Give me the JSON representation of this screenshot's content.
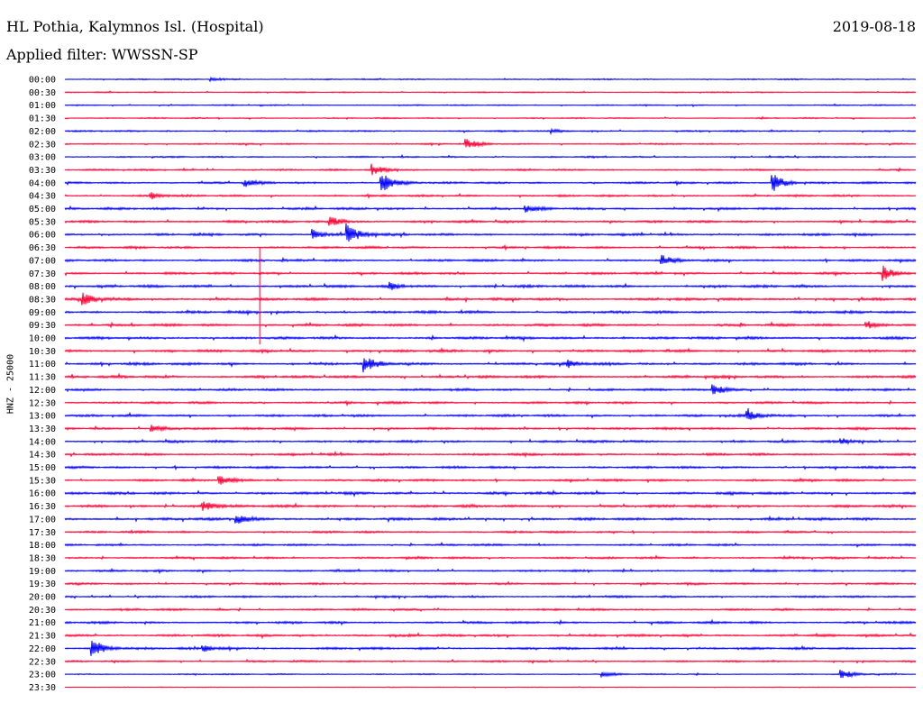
{
  "header": {
    "station": "HL Pothia, Kalymnos Isl. (Hospital)",
    "date": "2019-08-18",
    "filter": "Applied filter: WWSSN-SP"
  },
  "chart_data": {
    "type": "line",
    "title": "HL Pothia, Kalymnos Isl. (Hospital)",
    "subtitle": "Applied filter: WWSSN-SP",
    "ylabel": "HNZ - 25000",
    "xlabel": "",
    "grid": false,
    "legend": "none",
    "series_colors": [
      "#0000ff",
      "#ff0033"
    ],
    "categories": [
      "00:00",
      "00:30",
      "01:00",
      "01:30",
      "02:00",
      "02:30",
      "03:00",
      "03:30",
      "04:00",
      "04:30",
      "05:00",
      "05:30",
      "06:00",
      "06:30",
      "07:00",
      "07:30",
      "08:00",
      "08:30",
      "09:00",
      "09:30",
      "10:00",
      "10:30",
      "11:00",
      "11:30",
      "12:00",
      "12:30",
      "13:00",
      "13:30",
      "14:00",
      "14:30",
      "15:00",
      "15:30",
      "16:00",
      "16:30",
      "17:00",
      "17:30",
      "18:00",
      "18:30",
      "19:00",
      "19:30",
      "20:00",
      "20:30",
      "21:00",
      "21:30",
      "22:00",
      "22:30",
      "23:00",
      "23:30"
    ],
    "noise_level": [
      0.5,
      0.5,
      0.5,
      0.5,
      0.6,
      0.6,
      0.6,
      0.7,
      0.8,
      0.8,
      0.9,
      0.9,
      0.9,
      0.9,
      0.9,
      0.9,
      1.0,
      1.0,
      1.0,
      1.0,
      1.0,
      1.0,
      1.0,
      1.0,
      0.9,
      0.9,
      0.9,
      0.9,
      0.9,
      0.9,
      0.9,
      0.9,
      1.0,
      1.0,
      1.0,
      0.8,
      0.8,
      0.8,
      0.8,
      0.8,
      0.8,
      0.8,
      0.9,
      0.9,
      0.9,
      0.7,
      0.5,
      0.3
    ],
    "events": [
      {
        "trace": "00:00",
        "t": 0.17,
        "amp": 2
      },
      {
        "trace": "02:00",
        "t": 0.57,
        "amp": 2
      },
      {
        "trace": "02:30",
        "t": 0.47,
        "amp": 6
      },
      {
        "trace": "03:30",
        "t": 0.36,
        "amp": 6
      },
      {
        "trace": "04:00",
        "t": 0.37,
        "amp": 14
      },
      {
        "trace": "04:00",
        "t": 0.83,
        "amp": 12
      },
      {
        "trace": "04:00",
        "t": 0.21,
        "amp": 4
      },
      {
        "trace": "04:30",
        "t": 0.1,
        "amp": 4
      },
      {
        "trace": "05:00",
        "t": 0.54,
        "amp": 4
      },
      {
        "trace": "05:30",
        "t": 0.31,
        "amp": 6
      },
      {
        "trace": "06:00",
        "t": 0.33,
        "amp": 13
      },
      {
        "trace": "06:00",
        "t": 0.29,
        "amp": 6
      },
      {
        "trace": "07:00",
        "t": 0.7,
        "amp": 6
      },
      {
        "trace": "07:30",
        "t": 0.96,
        "amp": 8
      },
      {
        "trace": "08:00",
        "t": 0.38,
        "amp": 5
      },
      {
        "trace": "08:30",
        "t": 0.02,
        "amp": 7
      },
      {
        "trace": "09:30",
        "t": 0.94,
        "amp": 5
      },
      {
        "trace": "11:00",
        "t": 0.35,
        "amp": 9
      },
      {
        "trace": "11:00",
        "t": 0.59,
        "amp": 4
      },
      {
        "trace": "12:00",
        "t": 0.76,
        "amp": 7
      },
      {
        "trace": "13:00",
        "t": 0.8,
        "amp": 7
      },
      {
        "trace": "13:30",
        "t": 0.1,
        "amp": 5
      },
      {
        "trace": "14:00",
        "t": 0.91,
        "amp": 4
      },
      {
        "trace": "15:30",
        "t": 0.18,
        "amp": 6
      },
      {
        "trace": "16:30",
        "t": 0.16,
        "amp": 7
      },
      {
        "trace": "17:00",
        "t": 0.2,
        "amp": 6
      },
      {
        "trace": "22:00",
        "t": 0.03,
        "amp": 12
      },
      {
        "trace": "22:00",
        "t": 0.16,
        "amp": 4
      },
      {
        "trace": "23:00",
        "t": 0.91,
        "amp": 6
      },
      {
        "trace": "23:00",
        "t": 0.63,
        "amp": 3
      }
    ]
  }
}
